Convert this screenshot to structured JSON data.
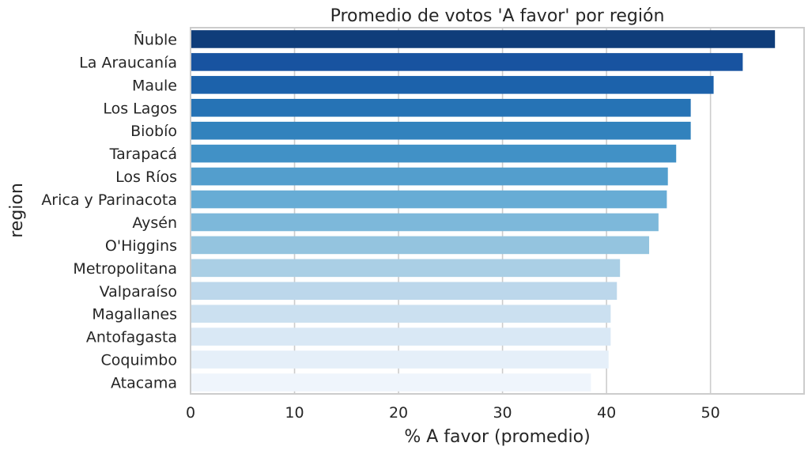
{
  "chart_data": {
    "type": "bar",
    "orientation": "horizontal",
    "title": "Promedio de votos 'A favor' por región",
    "xlabel": "% A favor (promedio)",
    "ylabel": "region",
    "xlim": [
      0,
      59
    ],
    "xticks": [
      0,
      10,
      20,
      30,
      40,
      50
    ],
    "grid": "vertical",
    "categories": [
      "Ñuble",
      "La Araucanía",
      "Maule",
      "Los Lagos",
      "Biobío",
      "Tarapacá",
      "Los Ríos",
      "Arica y Parinacota",
      "Aysén",
      "O'Higgins",
      "Metropolitana",
      "Valparaíso",
      "Magallanes",
      "Antofagasta",
      "Coquimbo",
      "Atacama"
    ],
    "values": [
      56.2,
      53.1,
      50.3,
      48.1,
      48.1,
      46.7,
      45.9,
      45.8,
      45.0,
      44.1,
      41.3,
      41.0,
      40.4,
      40.4,
      40.2,
      38.5
    ],
    "colors": [
      "#0f3d7a",
      "#1853a0",
      "#1c62ab",
      "#2673b5",
      "#3282bd",
      "#4191c6",
      "#539ecd",
      "#67acd5",
      "#7db8da",
      "#94c4df",
      "#aacfe5",
      "#bcd7eb",
      "#cbe0f0",
      "#d9e8f5",
      "#e5eff9",
      "#eff5fc"
    ]
  }
}
